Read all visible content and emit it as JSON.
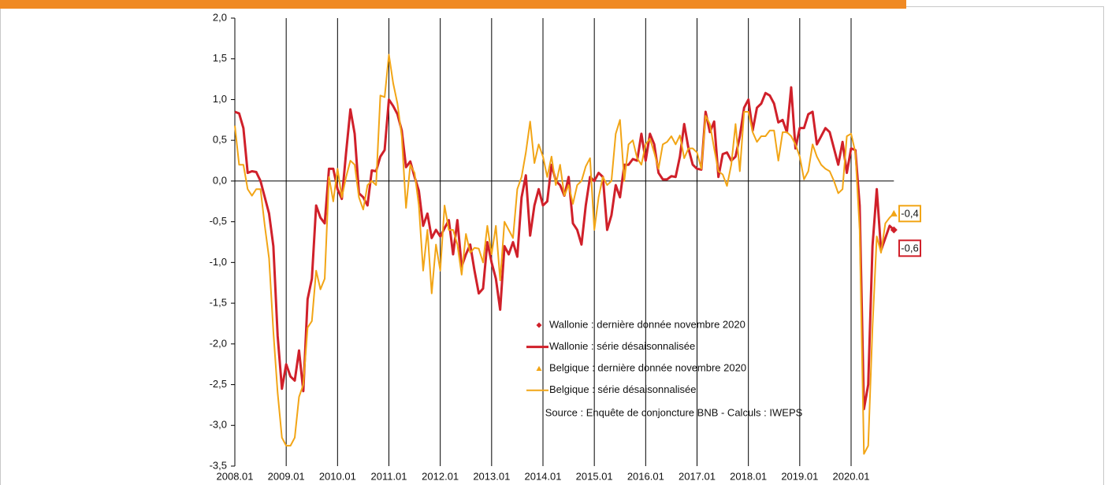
{
  "chart_data": {
    "type": "line",
    "categories": [
      "2008.01",
      null,
      null,
      null,
      null,
      null,
      null,
      null,
      null,
      null,
      null,
      null,
      "2009.01",
      null,
      null,
      null,
      null,
      null,
      null,
      null,
      null,
      null,
      null,
      null,
      "2010.01",
      null,
      null,
      null,
      null,
      null,
      null,
      null,
      null,
      null,
      null,
      null,
      "2011.01",
      null,
      null,
      null,
      null,
      null,
      null,
      null,
      null,
      null,
      null,
      null,
      "2012.01",
      null,
      null,
      null,
      null,
      null,
      null,
      null,
      null,
      null,
      null,
      null,
      "2013.01",
      null,
      null,
      null,
      null,
      null,
      null,
      null,
      null,
      null,
      null,
      null,
      "2014.01",
      null,
      null,
      null,
      null,
      null,
      null,
      null,
      null,
      null,
      null,
      null,
      "2015.01",
      null,
      null,
      null,
      null,
      null,
      null,
      null,
      null,
      null,
      null,
      null,
      "2016.01",
      null,
      null,
      null,
      null,
      null,
      null,
      null,
      null,
      null,
      null,
      null,
      "2017.01",
      null,
      null,
      null,
      null,
      null,
      null,
      null,
      null,
      null,
      null,
      null,
      "2018.01",
      null,
      null,
      null,
      null,
      null,
      null,
      null,
      null,
      null,
      null,
      null,
      "2019.01",
      null,
      null,
      null,
      null,
      null,
      null,
      null,
      null,
      null,
      null,
      null,
      "2020.01",
      null,
      null,
      null,
      null,
      null,
      null,
      null,
      null,
      null,
      null
    ],
    "series": [
      {
        "name": "Wallonie : dernière donnée novembre 2020",
        "color": "#d0202a",
        "marker": "diamond",
        "values": [
          null,
          null,
          null,
          null,
          null,
          null,
          null,
          null,
          null,
          null,
          null,
          null,
          null,
          null,
          null,
          null,
          null,
          null,
          null,
          null,
          null,
          null,
          null,
          null,
          null,
          null,
          null,
          null,
          null,
          null,
          null,
          null,
          null,
          null,
          null,
          null,
          null,
          null,
          null,
          null,
          null,
          null,
          null,
          null,
          null,
          null,
          null,
          null,
          null,
          null,
          null,
          null,
          null,
          null,
          null,
          null,
          null,
          null,
          null,
          null,
          null,
          null,
          null,
          null,
          null,
          null,
          null,
          null,
          null,
          null,
          null,
          null,
          null,
          null,
          null,
          null,
          null,
          null,
          null,
          null,
          null,
          null,
          null,
          null,
          null,
          null,
          null,
          null,
          null,
          null,
          null,
          null,
          null,
          null,
          null,
          null,
          null,
          null,
          null,
          null,
          null,
          null,
          null,
          null,
          null,
          null,
          null,
          null,
          null,
          null,
          null,
          null,
          null,
          null,
          null,
          null,
          null,
          null,
          null,
          null,
          null,
          null,
          null,
          null,
          null,
          null,
          null,
          null,
          null,
          null,
          null,
          null,
          null,
          null,
          null,
          null,
          null,
          null,
          null,
          null,
          null,
          null,
          null,
          null,
          null,
          null,
          null,
          null,
          null,
          null,
          null,
          null,
          null,
          null,
          -0.6
        ],
        "value_labels": [
          null,
          null,
          null,
          null,
          null,
          null,
          null,
          null,
          null,
          null,
          null,
          null,
          null,
          null,
          null,
          null,
          null,
          null,
          null,
          null,
          null,
          null,
          null,
          null,
          null,
          null,
          null,
          null,
          null,
          null,
          null,
          null,
          null,
          null,
          null,
          null,
          null,
          null,
          null,
          null,
          null,
          null,
          null,
          null,
          null,
          null,
          null,
          null,
          null,
          null,
          null,
          null,
          null,
          null,
          null,
          null,
          null,
          null,
          null,
          null,
          null,
          null,
          null,
          null,
          null,
          null,
          null,
          null,
          null,
          null,
          null,
          null,
          null,
          null,
          null,
          null,
          null,
          null,
          null,
          null,
          null,
          null,
          null,
          null,
          null,
          null,
          null,
          null,
          null,
          null,
          null,
          null,
          null,
          null,
          null,
          null,
          null,
          null,
          null,
          null,
          null,
          null,
          null,
          null,
          null,
          null,
          null,
          null,
          null,
          null,
          null,
          null,
          null,
          null,
          null,
          null,
          null,
          null,
          null,
          null,
          null,
          null,
          null,
          null,
          null,
          null,
          null,
          null,
          null,
          null,
          null,
          null,
          null,
          null,
          null,
          null,
          null,
          null,
          null,
          null,
          null,
          null,
          null,
          null,
          null,
          null,
          null,
          null,
          null,
          null,
          null,
          null,
          null,
          null,
          "-0,6"
        ]
      },
      {
        "name": "Wallonie : série désaisonnalisée",
        "color": "#d0202a",
        "line_width": 3,
        "values": [
          0.85,
          0.83,
          0.65,
          0.1,
          0.12,
          0.11,
          0.0,
          -0.2,
          -0.4,
          -0.8,
          -1.9,
          -2.55,
          -2.25,
          -2.4,
          -2.45,
          -2.08,
          -2.58,
          -1.45,
          -1.2,
          -0.3,
          -0.45,
          -0.52,
          0.15,
          0.15,
          -0.1,
          -0.22,
          0.35,
          0.88,
          0.58,
          -0.15,
          -0.2,
          -0.3,
          0.13,
          0.12,
          0.3,
          0.38,
          1.0,
          0.92,
          0.82,
          0.62,
          0.17,
          0.24,
          0.05,
          -0.12,
          -0.55,
          -0.4,
          -0.7,
          -0.6,
          -0.68,
          -0.58,
          -0.48,
          -0.9,
          -0.48,
          -1.05,
          -0.9,
          -0.78,
          -1.1,
          -1.38,
          -1.32,
          -0.75,
          -1.0,
          -1.2,
          -1.58,
          -0.8,
          -0.9,
          -0.75,
          -0.93,
          -0.2,
          0.07,
          -0.67,
          -0.3,
          -0.1,
          -0.3,
          -0.25,
          0.2,
          0.0,
          -0.05,
          -0.18,
          0.05,
          -0.52,
          -0.6,
          -0.78,
          -0.3,
          0.05,
          0.0,
          0.1,
          0.05,
          -0.6,
          -0.42,
          -0.05,
          -0.2,
          0.2,
          0.2,
          0.27,
          0.25,
          0.58,
          0.25,
          0.58,
          0.45,
          0.1,
          0.02,
          0.02,
          0.06,
          0.05,
          0.3,
          0.7,
          0.4,
          0.2,
          0.15,
          0.14,
          0.85,
          0.6,
          0.73,
          0.05,
          0.33,
          0.35,
          0.25,
          0.3,
          0.55,
          0.9,
          1.0,
          0.62,
          0.9,
          0.95,
          1.08,
          1.05,
          0.95,
          0.72,
          0.75,
          0.6,
          1.15,
          0.4,
          0.65,
          0.65,
          0.82,
          0.85,
          0.45,
          0.55,
          0.65,
          0.6,
          0.4,
          0.2,
          0.48,
          0.1,
          0.4,
          0.38,
          -0.3,
          -2.8,
          -2.5,
          -0.8,
          -0.1,
          -0.85,
          -0.7,
          -0.55,
          -0.6
        ]
      },
      {
        "name": "Belgique : dernière donnée novembre 2020",
        "color": "#f2a516",
        "marker": "triangle",
        "values": [
          null,
          null,
          null,
          null,
          null,
          null,
          null,
          null,
          null,
          null,
          null,
          null,
          null,
          null,
          null,
          null,
          null,
          null,
          null,
          null,
          null,
          null,
          null,
          null,
          null,
          null,
          null,
          null,
          null,
          null,
          null,
          null,
          null,
          null,
          null,
          null,
          null,
          null,
          null,
          null,
          null,
          null,
          null,
          null,
          null,
          null,
          null,
          null,
          null,
          null,
          null,
          null,
          null,
          null,
          null,
          null,
          null,
          null,
          null,
          null,
          null,
          null,
          null,
          null,
          null,
          null,
          null,
          null,
          null,
          null,
          null,
          null,
          null,
          null,
          null,
          null,
          null,
          null,
          null,
          null,
          null,
          null,
          null,
          null,
          null,
          null,
          null,
          null,
          null,
          null,
          null,
          null,
          null,
          null,
          null,
          null,
          null,
          null,
          null,
          null,
          null,
          null,
          null,
          null,
          null,
          null,
          null,
          null,
          null,
          null,
          null,
          null,
          null,
          null,
          null,
          null,
          null,
          null,
          null,
          null,
          null,
          null,
          null,
          null,
          null,
          null,
          null,
          null,
          null,
          null,
          null,
          null,
          null,
          null,
          null,
          null,
          null,
          null,
          null,
          null,
          null,
          null,
          null,
          null,
          null,
          null,
          null,
          null,
          null,
          null,
          null,
          null,
          null,
          null,
          -0.4
        ],
        "value_labels": [
          null,
          null,
          null,
          null,
          null,
          null,
          null,
          null,
          null,
          null,
          null,
          null,
          null,
          null,
          null,
          null,
          null,
          null,
          null,
          null,
          null,
          null,
          null,
          null,
          null,
          null,
          null,
          null,
          null,
          null,
          null,
          null,
          null,
          null,
          null,
          null,
          null,
          null,
          null,
          null,
          null,
          null,
          null,
          null,
          null,
          null,
          null,
          null,
          null,
          null,
          null,
          null,
          null,
          null,
          null,
          null,
          null,
          null,
          null,
          null,
          null,
          null,
          null,
          null,
          null,
          null,
          null,
          null,
          null,
          null,
          null,
          null,
          null,
          null,
          null,
          null,
          null,
          null,
          null,
          null,
          null,
          null,
          null,
          null,
          null,
          null,
          null,
          null,
          null,
          null,
          null,
          null,
          null,
          null,
          null,
          null,
          null,
          null,
          null,
          null,
          null,
          null,
          null,
          null,
          null,
          null,
          null,
          null,
          null,
          null,
          null,
          null,
          null,
          null,
          null,
          null,
          null,
          null,
          null,
          null,
          null,
          null,
          null,
          null,
          null,
          null,
          null,
          null,
          null,
          null,
          null,
          null,
          null,
          null,
          null,
          null,
          null,
          null,
          null,
          null,
          null,
          null,
          null,
          null,
          null,
          null,
          null,
          null,
          null,
          null,
          null,
          null,
          null,
          null,
          "-0,4"
        ]
      },
      {
        "name": "Belgique : série désaisonnalisée",
        "color": "#f2a516",
        "line_width": 2,
        "values": [
          0.68,
          0.2,
          0.2,
          -0.1,
          -0.18,
          -0.1,
          -0.1,
          -0.55,
          -0.95,
          -1.85,
          -2.6,
          -3.15,
          -3.25,
          -3.25,
          -3.15,
          -2.65,
          -2.5,
          -1.8,
          -1.72,
          -1.1,
          -1.33,
          -1.2,
          0.05,
          -0.25,
          0.15,
          -0.2,
          0.05,
          0.25,
          0.2,
          -0.2,
          -0.35,
          -0.05,
          0.0,
          -0.05,
          1.05,
          1.03,
          1.55,
          1.2,
          0.95,
          0.55,
          -0.33,
          0.2,
          0.1,
          -0.3,
          -1.1,
          -0.6,
          -1.38,
          -0.78,
          -1.1,
          -0.3,
          -0.6,
          -0.6,
          -0.78,
          -1.15,
          -0.65,
          -0.88,
          -0.82,
          -0.83,
          -1.0,
          -0.55,
          -0.9,
          -0.55,
          -1.22,
          -0.5,
          -0.6,
          -0.7,
          -0.1,
          0.05,
          0.35,
          0.73,
          0.22,
          0.45,
          0.3,
          0.05,
          0.3,
          -0.05,
          0.2,
          -0.18,
          -0.05,
          -0.28,
          -0.05,
          0.0,
          0.18,
          0.28,
          -0.6,
          -0.2,
          0.05,
          -0.05,
          0.0,
          0.58,
          0.75,
          0.0,
          0.45,
          0.5,
          0.28,
          0.2,
          0.45,
          0.52,
          0.35,
          0.15,
          0.45,
          0.48,
          0.55,
          0.45,
          0.56,
          0.28,
          0.4,
          0.4,
          0.35,
          0.15,
          0.8,
          0.7,
          0.4,
          0.12,
          0.08,
          -0.06,
          0.2,
          0.7,
          0.12,
          0.85,
          0.85,
          0.6,
          0.48,
          0.55,
          0.55,
          0.62,
          0.62,
          0.25,
          0.6,
          0.6,
          0.55,
          0.45,
          0.3,
          0.02,
          0.12,
          0.45,
          0.3,
          0.2,
          0.15,
          0.12,
          0.0,
          -0.15,
          -0.1,
          0.55,
          0.58,
          0.35,
          -0.6,
          -3.35,
          -3.25,
          -1.8,
          -0.68,
          -0.88,
          -0.52,
          -0.45,
          -0.4
        ]
      }
    ],
    "ylim": [
      -3.5,
      2.0
    ],
    "yticks": [
      {
        "value": -3.5,
        "label": "-3,5"
      },
      {
        "value": -3.0,
        "label": "-3,0"
      },
      {
        "value": -2.5,
        "label": "-2,5"
      },
      {
        "value": -2.0,
        "label": "-2,0"
      },
      {
        "value": -1.5,
        "label": "-1,5"
      },
      {
        "value": -1.0,
        "label": "-1,0"
      },
      {
        "value": -0.5,
        "label": "-0,5"
      },
      {
        "value": 0.0,
        "label": "0,0"
      },
      {
        "value": 0.5,
        "label": "0,5"
      },
      {
        "value": 1.0,
        "label": "1,0"
      },
      {
        "value": 1.5,
        "label": "1,5"
      },
      {
        "value": 2.0,
        "label": "2,0"
      }
    ],
    "annotation": "Source : Enquête de conjoncture BNB - Calculs : IWEPS"
  }
}
